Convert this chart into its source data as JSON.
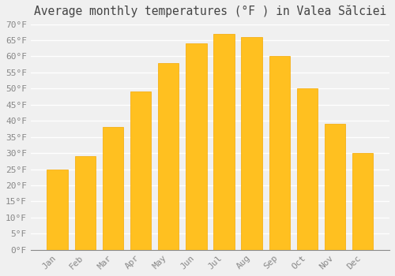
{
  "title": "Average monthly temperatures (°F ) in Valea Sălciei",
  "months": [
    "Jan",
    "Feb",
    "Mar",
    "Apr",
    "May",
    "Jun",
    "Jul",
    "Aug",
    "Sep",
    "Oct",
    "Nov",
    "Dec"
  ],
  "values": [
    25,
    29,
    38,
    49,
    58,
    64,
    67,
    66,
    60,
    50,
    39,
    30
  ],
  "bar_color": "#FFC020",
  "bar_edge_color": "#F5A800",
  "background_color": "#f0f0f0",
  "plot_bg_color": "#f0f0f0",
  "grid_color": "#ffffff",
  "ylim": [
    0,
    70
  ],
  "yticks": [
    0,
    5,
    10,
    15,
    20,
    25,
    30,
    35,
    40,
    45,
    50,
    55,
    60,
    65,
    70
  ],
  "ylabel_suffix": "°F",
  "title_fontsize": 10.5,
  "tick_fontsize": 8,
  "font_family": "monospace",
  "bar_width": 0.75
}
